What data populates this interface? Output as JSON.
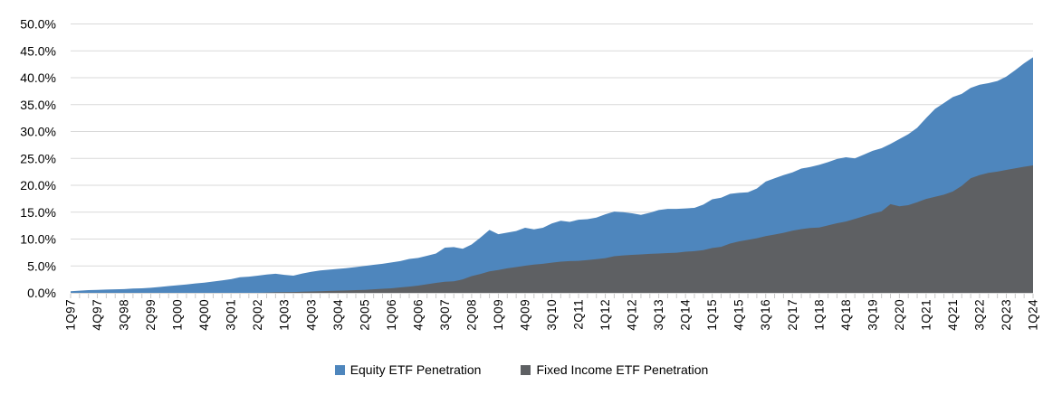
{
  "chart_data": {
    "type": "area",
    "title": "",
    "grid": "horizontal",
    "legend_position": "bottom",
    "colors": {
      "gridline": "#D9D9D9",
      "axis_line": "#D9D9D9",
      "tick": "#C9C9C9",
      "label_text": "#000000"
    },
    "y_axis": {
      "min": 0,
      "max": 50,
      "step": 5,
      "tick_labels": [
        "0.0%",
        "5.0%",
        "10.0%",
        "15.0%",
        "20.0%",
        "25.0%",
        "30.0%",
        "35.0%",
        "40.0%",
        "45.0%",
        "50.0%"
      ]
    },
    "x_axis": {
      "label_interval": 3,
      "tick_labels_visible": [
        "1Q97",
        "4Q97",
        "3Q98",
        "2Q99",
        "1Q00",
        "4Q00",
        "3Q01",
        "2Q02",
        "1Q03",
        "4Q03",
        "3Q04",
        "2Q05",
        "1Q06",
        "4Q06",
        "3Q07",
        "2Q08",
        "1Q09",
        "4Q09",
        "3Q10",
        "2Q11",
        "1Q12",
        "4Q12",
        "3Q13",
        "2Q14",
        "1Q15",
        "4Q15",
        "3Q16",
        "2Q17",
        "1Q18",
        "4Q18",
        "3Q19",
        "2Q20",
        "1Q21",
        "4Q21",
        "3Q22",
        "2Q23",
        "1Q24"
      ],
      "categories": [
        "1Q97",
        "2Q97",
        "3Q97",
        "4Q97",
        "1Q98",
        "2Q98",
        "3Q98",
        "4Q98",
        "1Q99",
        "2Q99",
        "3Q99",
        "4Q99",
        "1Q00",
        "2Q00",
        "3Q00",
        "4Q00",
        "1Q01",
        "2Q01",
        "3Q01",
        "4Q01",
        "1Q02",
        "2Q02",
        "3Q02",
        "4Q02",
        "1Q03",
        "2Q03",
        "3Q03",
        "4Q03",
        "1Q04",
        "2Q04",
        "3Q04",
        "4Q04",
        "1Q05",
        "2Q05",
        "3Q05",
        "4Q05",
        "1Q06",
        "2Q06",
        "3Q06",
        "4Q06",
        "1Q07",
        "2Q07",
        "3Q07",
        "4Q07",
        "1Q08",
        "2Q08",
        "3Q08",
        "4Q08",
        "1Q09",
        "2Q09",
        "3Q09",
        "4Q09",
        "1Q10",
        "2Q10",
        "3Q10",
        "4Q10",
        "1Q11",
        "2Q11",
        "3Q11",
        "4Q11",
        "1Q12",
        "2Q12",
        "3Q12",
        "4Q12",
        "1Q13",
        "2Q13",
        "3Q13",
        "4Q13",
        "1Q14",
        "2Q14",
        "3Q14",
        "4Q14",
        "1Q15",
        "2Q15",
        "3Q15",
        "4Q15",
        "1Q16",
        "2Q16",
        "3Q16",
        "4Q16",
        "1Q17",
        "2Q17",
        "3Q17",
        "4Q17",
        "1Q18",
        "2Q18",
        "3Q18",
        "4Q18",
        "1Q19",
        "2Q19",
        "3Q19",
        "4Q19",
        "1Q20",
        "2Q20",
        "3Q20",
        "4Q20",
        "1Q21",
        "2Q21",
        "3Q21",
        "4Q21",
        "1Q22",
        "2Q22",
        "3Q22",
        "4Q22",
        "1Q23",
        "2Q23",
        "3Q23",
        "4Q23",
        "1Q24"
      ]
    },
    "series": [
      {
        "name": "Equity ETF Penetration",
        "color": "#4E86BD",
        "values": [
          0.3,
          0.4,
          0.5,
          0.55,
          0.6,
          0.65,
          0.7,
          0.8,
          0.85,
          0.95,
          1.1,
          1.25,
          1.4,
          1.55,
          1.75,
          1.9,
          2.1,
          2.3,
          2.55,
          2.9,
          3.0,
          3.2,
          3.4,
          3.55,
          3.35,
          3.2,
          3.6,
          3.9,
          4.15,
          4.3,
          4.45,
          4.6,
          4.8,
          5.0,
          5.2,
          5.4,
          5.65,
          5.9,
          6.3,
          6.5,
          6.9,
          7.3,
          8.4,
          8.5,
          8.2,
          9.0,
          10.3,
          11.7,
          10.9,
          11.2,
          11.5,
          12.1,
          11.8,
          12.1,
          12.9,
          13.4,
          13.2,
          13.6,
          13.7,
          14.0,
          14.6,
          15.1,
          15.0,
          14.8,
          14.5,
          14.9,
          15.4,
          15.6,
          15.6,
          15.7,
          15.8,
          16.4,
          17.4,
          17.7,
          18.4,
          18.6,
          18.7,
          19.4,
          20.7,
          21.3,
          21.9,
          22.4,
          23.1,
          23.4,
          23.8,
          24.3,
          24.9,
          25.2,
          25.0,
          25.7,
          26.4,
          26.9,
          27.7,
          28.6,
          29.5,
          30.7,
          32.5,
          34.2,
          35.3,
          36.4,
          37.0,
          38.1,
          38.7,
          39.0,
          39.4,
          40.2,
          41.4,
          42.7,
          43.8
        ]
      },
      {
        "name": "Fixed Income ETF Penetration",
        "color": "#5E6063",
        "values": [
          0,
          0,
          0,
          0,
          0,
          0,
          0,
          0,
          0,
          0,
          0,
          0,
          0,
          0,
          0,
          0,
          0,
          0,
          0,
          0,
          0,
          0,
          0.05,
          0.1,
          0.12,
          0.15,
          0.2,
          0.25,
          0.3,
          0.35,
          0.4,
          0.45,
          0.5,
          0.55,
          0.65,
          0.75,
          0.85,
          1.0,
          1.15,
          1.35,
          1.6,
          1.85,
          2.05,
          2.15,
          2.5,
          3.1,
          3.5,
          4.0,
          4.25,
          4.55,
          4.8,
          5.05,
          5.25,
          5.4,
          5.6,
          5.8,
          5.9,
          5.95,
          6.1,
          6.25,
          6.45,
          6.8,
          6.95,
          7.05,
          7.15,
          7.25,
          7.3,
          7.4,
          7.45,
          7.65,
          7.75,
          7.95,
          8.35,
          8.55,
          9.15,
          9.55,
          9.85,
          10.15,
          10.55,
          10.85,
          11.15,
          11.55,
          11.85,
          12.05,
          12.15,
          12.55,
          12.95,
          13.25,
          13.75,
          14.25,
          14.75,
          15.15,
          16.5,
          16.1,
          16.3,
          16.85,
          17.45,
          17.85,
          18.25,
          18.85,
          19.9,
          21.3,
          21.9,
          22.3,
          22.55,
          22.85,
          23.15,
          23.45,
          23.7
        ]
      }
    ]
  },
  "legend": {
    "items": [
      {
        "label": "Equity ETF Penetration",
        "color": "#4E86BD"
      },
      {
        "label": "Fixed Income ETF Penetration",
        "color": "#5E6063"
      }
    ]
  }
}
